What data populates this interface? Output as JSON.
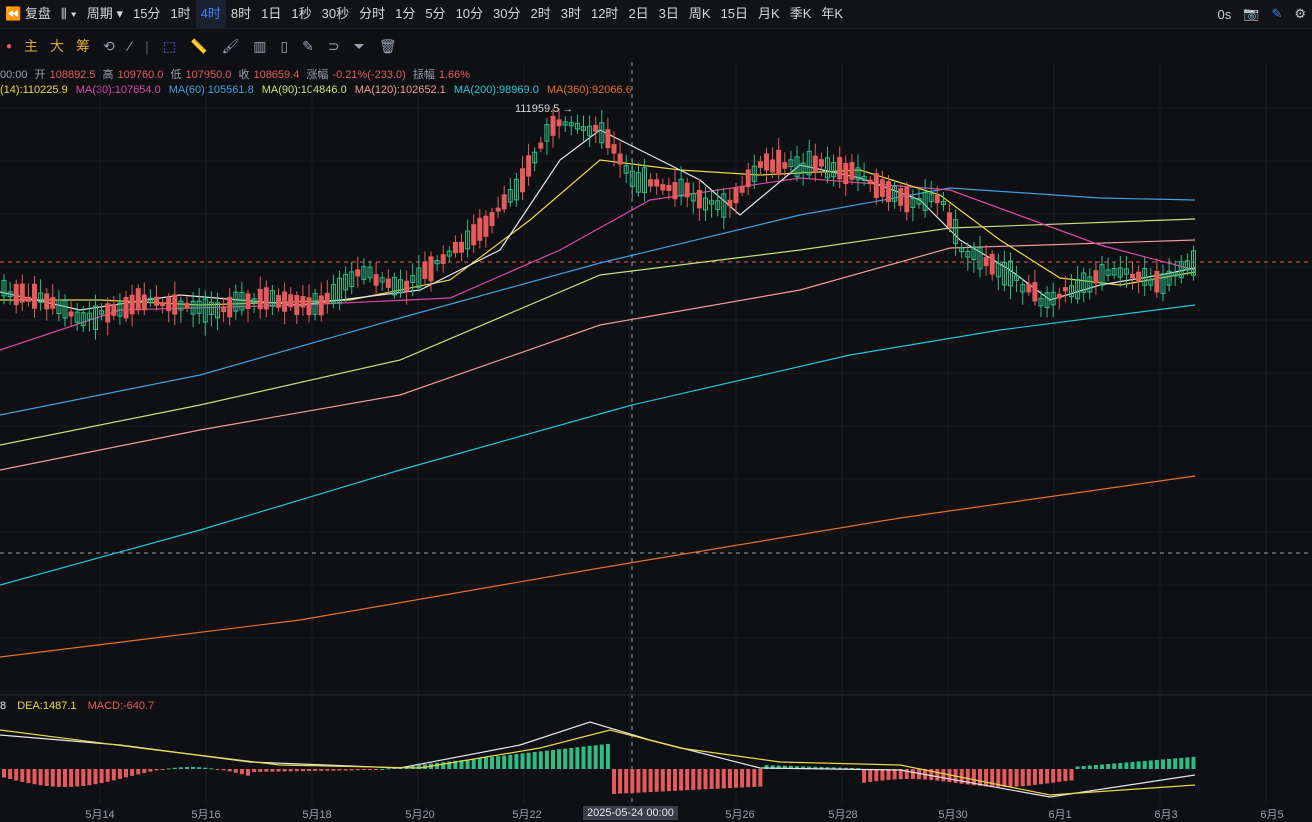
{
  "topbar": {
    "replay_label": "复盘",
    "period_label": "周期",
    "intervals": [
      "15分",
      "1时",
      "4时",
      "8时",
      "1日",
      "1秒",
      "30秒",
      "分时",
      "1分",
      "5分",
      "10分",
      "30分",
      "2时",
      "3时",
      "12时",
      "2日",
      "3日",
      "周K",
      "15日",
      "月K",
      "季K",
      "年K"
    ],
    "active_interval": "4时",
    "latency": "0s"
  },
  "toolbar2": {
    "indicators": [
      "主",
      "大",
      "筹"
    ]
  },
  "ohlc": {
    "time": "00:00",
    "open_label": "开",
    "open": "108892.5",
    "high_label": "高",
    "high": "109760.0",
    "low_label": "低",
    "low": "107950.0",
    "close_label": "收",
    "close": "108659.4",
    "change_label": "涨幅",
    "change": "-0.21%(-233.0)",
    "amp_label": "振幅",
    "amp": "1.66%"
  },
  "ma": [
    {
      "label": "(14):110225.9",
      "color": "#e8d84a"
    },
    {
      "label": "MA(30):107654.0",
      "color": "#d84aa8"
    },
    {
      "label": "MA(60):105561.8",
      "color": "#3ea0e0"
    },
    {
      "label": "MA(90):104846.0",
      "color": "#c6e07a"
    },
    {
      "label": "MA(120):102652.1",
      "color": "#f09a9a"
    },
    {
      "label": "MA(200):98969.0",
      "color": "#22c7d8"
    },
    {
      "label": "MA(360):92066.6",
      "color": "#e8702a"
    }
  ],
  "macd": {
    "dif": "8",
    "dea": "DEA:1487.1",
    "macd": "MACD:-640.7"
  },
  "high_marker": "111959.5 →",
  "xaxis": {
    "labels": [
      "5月14",
      "5月16",
      "5月18",
      "5月20",
      "5月22",
      "5月26",
      "5月28",
      "5月30",
      "6月1",
      "6月3",
      "6月5"
    ],
    "cursor_label": "2025-05-24 00:00"
  },
  "colors": {
    "up": "#2ebd85",
    "down": "#e55a5a",
    "accent": "#3b82f6",
    "orange": "#e0a63a"
  }
}
